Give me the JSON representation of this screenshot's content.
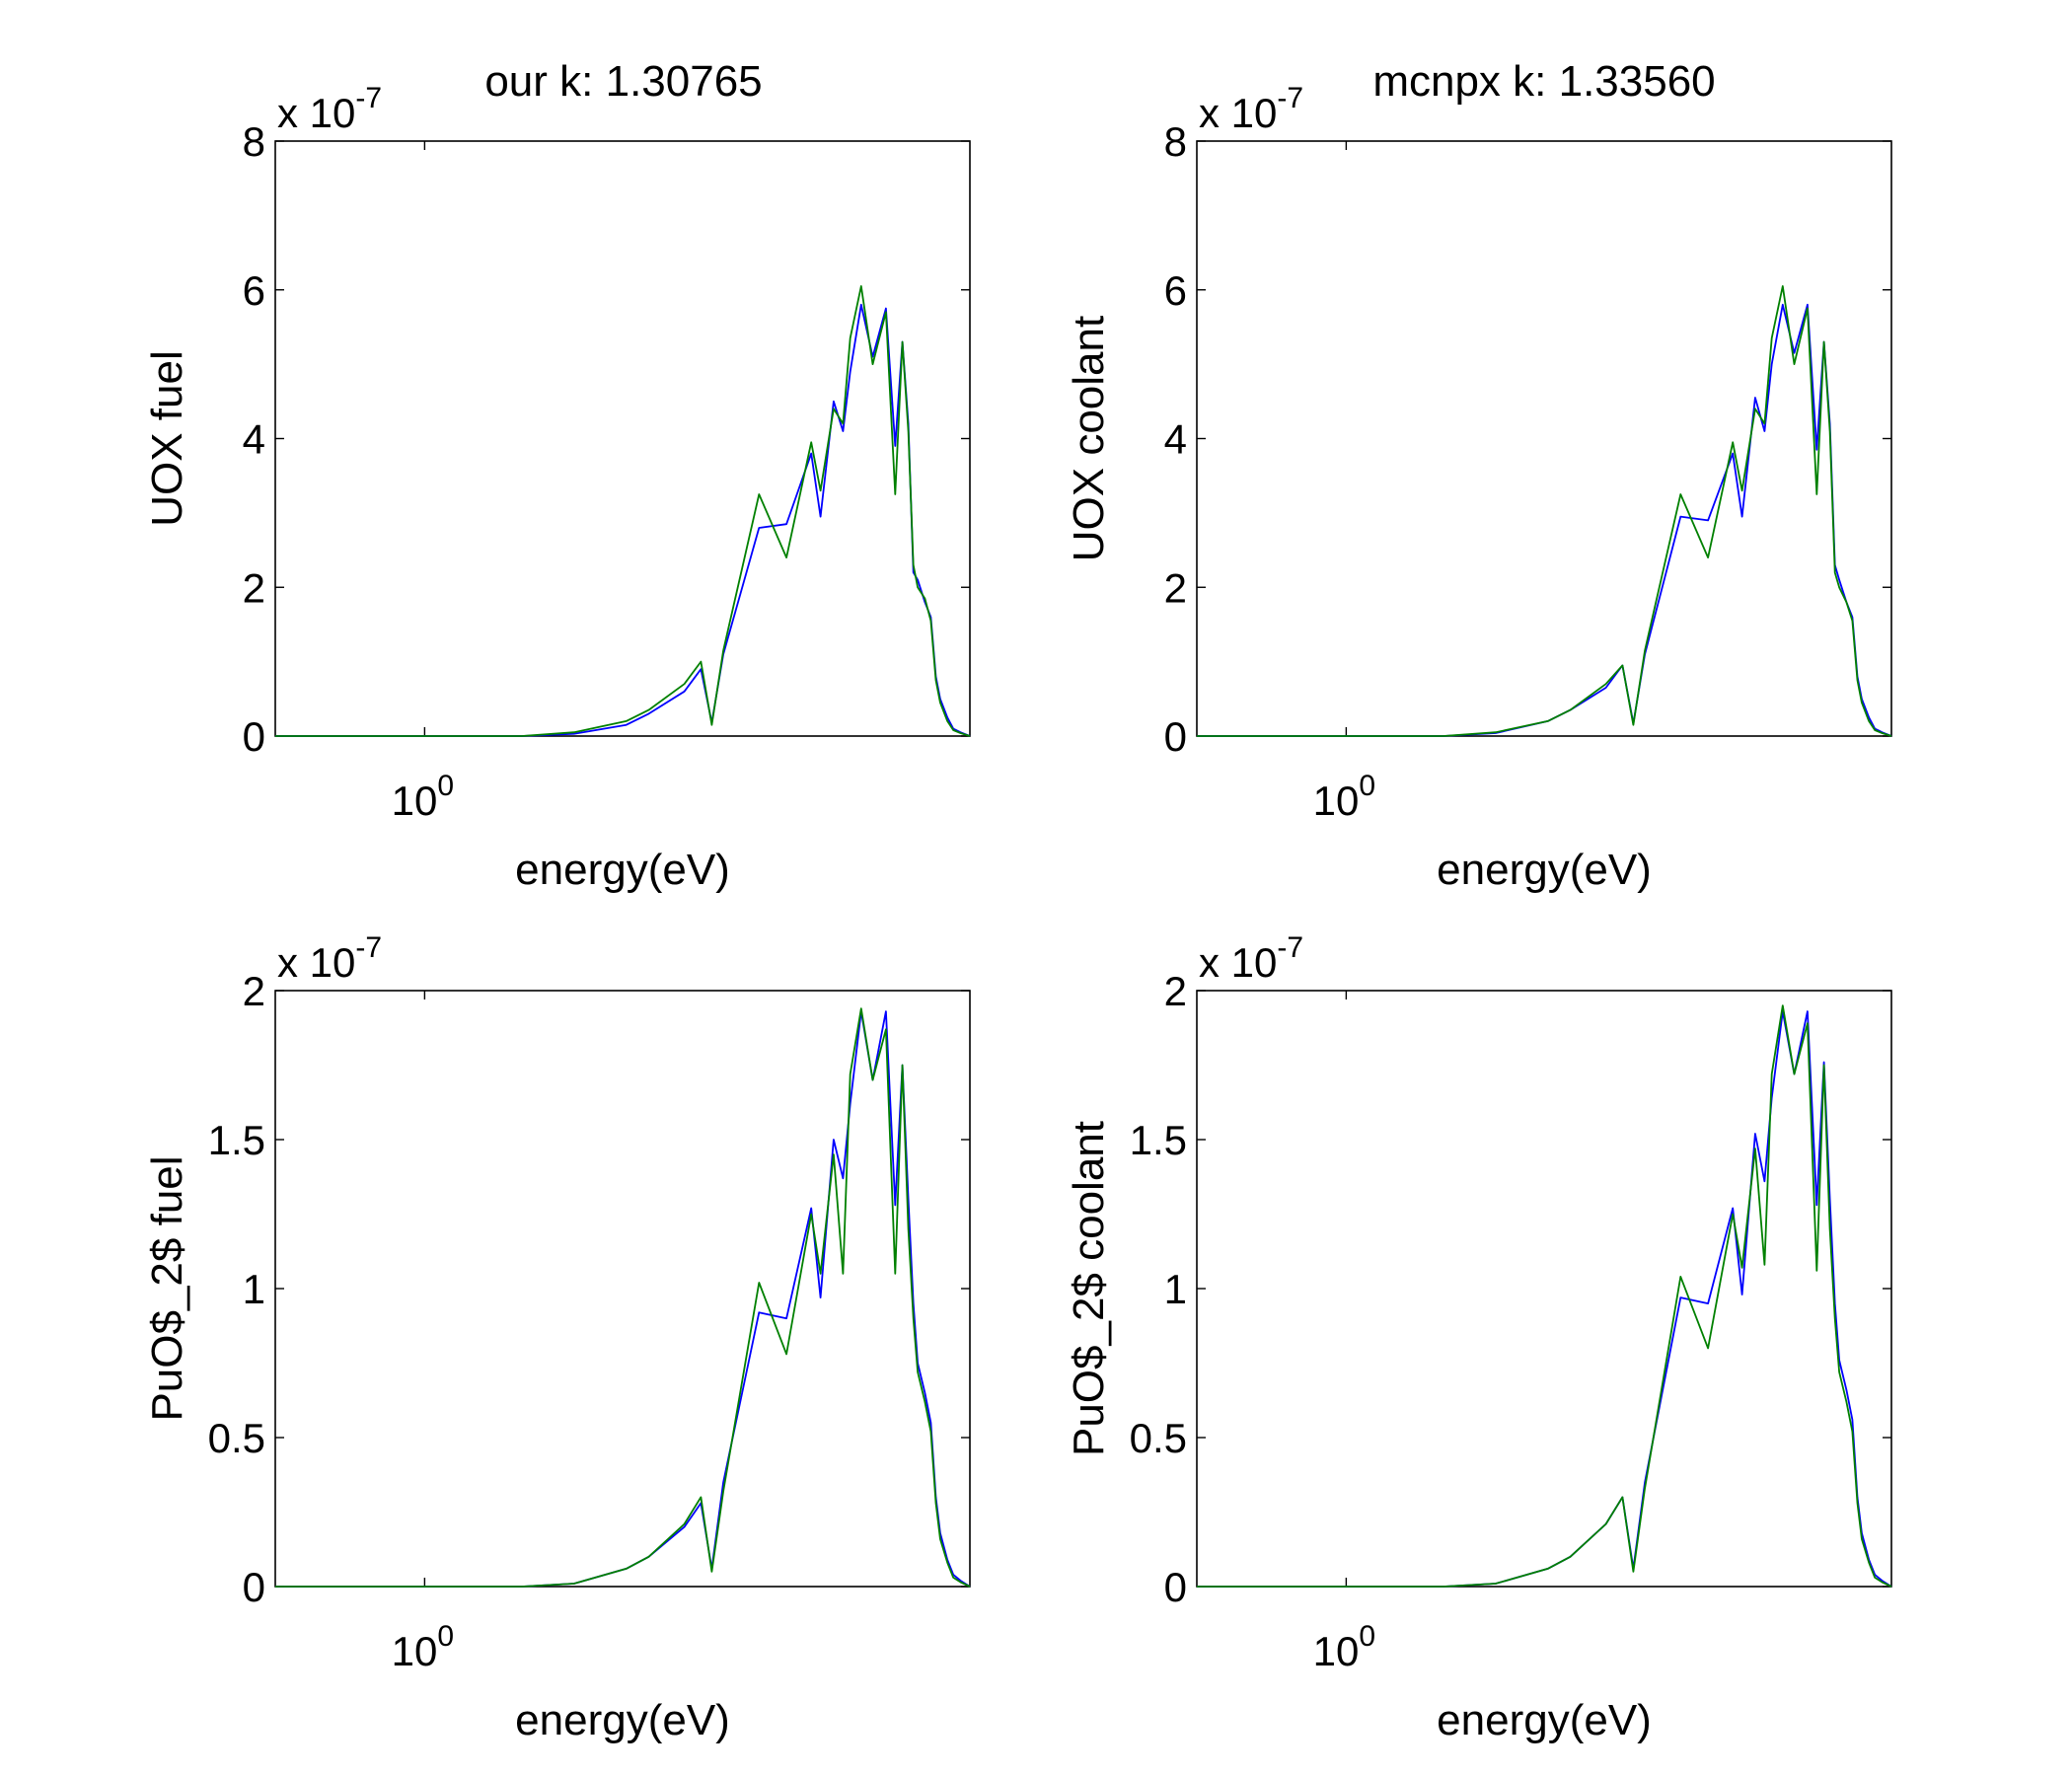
{
  "figure": {
    "top_left_title": "our k: 1.30765",
    "top_right_title": "mcnpx k: 1.33560"
  },
  "series_colors": {
    "our": "#0000ff",
    "mcnpx": "#008000"
  },
  "chart_data": [
    {
      "type": "line",
      "panel": "top-left",
      "ylabel": "UOX fuel",
      "xlabel": "energy(eV)",
      "xscale": "log",
      "xlim": [
        0.01,
        20000000
      ],
      "xticks": [
        {
          "value": 1,
          "base": "10",
          "exp": "0"
        }
      ],
      "ylim": [
        0,
        8
      ],
      "yticks": [
        "0",
        "2",
        "4",
        "6",
        "8"
      ],
      "yscale_factor": {
        "prefix": "x 10",
        "exp": "-7"
      },
      "series": [
        {
          "color": "#0000ff",
          "x": [
            0.01,
            1,
            20,
            100,
            500,
            1000,
            3000,
            5000,
            7000,
            10000,
            30000,
            70000,
            150000,
            200000,
            300000,
            400000,
            500000,
            700000,
            1000000,
            1500000,
            2000000,
            2500000,
            3000000,
            3500000,
            4000000,
            5000000,
            6000000,
            7000000,
            8000000,
            10000000,
            12000000,
            15000000,
            20000000
          ],
          "y": [
            0,
            0,
            0,
            0.03,
            0.15,
            0.3,
            0.6,
            0.9,
            0.18,
            1.1,
            2.8,
            2.85,
            3.8,
            2.95,
            4.5,
            4.1,
            4.9,
            5.8,
            5.1,
            5.75,
            3.9,
            5.3,
            4.2,
            2.2,
            2.1,
            1.8,
            1.6,
            0.8,
            0.5,
            0.25,
            0.1,
            0.05,
            0
          ]
        },
        {
          "color": "#008000",
          "x": [
            0.01,
            1,
            20,
            100,
            500,
            1000,
            3000,
            5000,
            7000,
            10000,
            30000,
            70000,
            150000,
            200000,
            300000,
            400000,
            500000,
            700000,
            1000000,
            1500000,
            2000000,
            2500000,
            3000000,
            3500000,
            4000000,
            5000000,
            6000000,
            7000000,
            8000000,
            10000000,
            12000000,
            15000000,
            20000000
          ],
          "y": [
            0,
            0,
            0,
            0.05,
            0.2,
            0.35,
            0.7,
            1.0,
            0.15,
            1.15,
            3.25,
            2.4,
            3.95,
            3.3,
            4.4,
            4.2,
            5.35,
            6.05,
            5.0,
            5.7,
            3.25,
            5.3,
            4.1,
            2.3,
            2.0,
            1.85,
            1.55,
            0.75,
            0.45,
            0.2,
            0.08,
            0.04,
            0
          ]
        }
      ]
    },
    {
      "type": "line",
      "panel": "top-right",
      "ylabel": "UOX coolant",
      "xlabel": "energy(eV)",
      "xscale": "log",
      "xlim": [
        0.01,
        20000000
      ],
      "xticks": [
        {
          "value": 1,
          "base": "10",
          "exp": "0"
        }
      ],
      "ylim": [
        0,
        8
      ],
      "yticks": [
        "0",
        "2",
        "4",
        "6",
        "8"
      ],
      "yscale_factor": {
        "prefix": "x 10",
        "exp": "-7"
      },
      "series": [
        {
          "color": "#0000ff",
          "x": [
            0.01,
            1,
            20,
            100,
            500,
            1000,
            3000,
            5000,
            7000,
            10000,
            30000,
            70000,
            150000,
            200000,
            300000,
            400000,
            500000,
            700000,
            1000000,
            1500000,
            2000000,
            2500000,
            3000000,
            3500000,
            4000000,
            5000000,
            6000000,
            7000000,
            8000000,
            10000000,
            12000000,
            15000000,
            20000000
          ],
          "y": [
            0,
            0,
            0,
            0.04,
            0.2,
            0.35,
            0.65,
            0.95,
            0.17,
            1.1,
            2.95,
            2.9,
            3.8,
            2.95,
            4.55,
            4.1,
            5.0,
            5.8,
            5.15,
            5.8,
            3.85,
            5.3,
            4.2,
            2.3,
            2.1,
            1.8,
            1.6,
            0.8,
            0.5,
            0.25,
            0.1,
            0.05,
            0
          ]
        },
        {
          "color": "#008000",
          "x": [
            0.01,
            1,
            20,
            100,
            500,
            1000,
            3000,
            5000,
            7000,
            10000,
            30000,
            70000,
            150000,
            200000,
            300000,
            400000,
            500000,
            700000,
            1000000,
            1500000,
            2000000,
            2500000,
            3000000,
            3500000,
            4000000,
            5000000,
            6000000,
            7000000,
            8000000,
            10000000,
            12000000,
            15000000,
            20000000
          ],
          "y": [
            0,
            0,
            0,
            0.05,
            0.2,
            0.35,
            0.7,
            0.95,
            0.15,
            1.15,
            3.25,
            2.4,
            3.95,
            3.3,
            4.4,
            4.2,
            5.35,
            6.05,
            5.0,
            5.75,
            3.25,
            5.3,
            4.1,
            2.2,
            2.0,
            1.8,
            1.55,
            0.75,
            0.45,
            0.2,
            0.08,
            0.04,
            0
          ]
        }
      ]
    },
    {
      "type": "line",
      "panel": "bottom-left",
      "ylabel": "PuO$_2$ fuel",
      "xlabel": "energy(eV)",
      "xscale": "log",
      "xlim": [
        0.01,
        20000000
      ],
      "xticks": [
        {
          "value": 1,
          "base": "10",
          "exp": "0"
        }
      ],
      "ylim": [
        0,
        2
      ],
      "yticks": [
        "0",
        "0.5",
        "1",
        "1.5",
        "2"
      ],
      "yscale_factor": {
        "prefix": "x 10",
        "exp": "-7"
      },
      "series": [
        {
          "color": "#0000ff",
          "x": [
            0.01,
            1,
            20,
            100,
            500,
            1000,
            3000,
            5000,
            7000,
            10000,
            30000,
            70000,
            150000,
            200000,
            300000,
            400000,
            500000,
            700000,
            1000000,
            1500000,
            2000000,
            2500000,
            3000000,
            3500000,
            4000000,
            5000000,
            6000000,
            7000000,
            8000000,
            10000000,
            12000000,
            15000000,
            20000000
          ],
          "y": [
            0,
            0,
            0,
            0.01,
            0.06,
            0.1,
            0.2,
            0.28,
            0.06,
            0.35,
            0.92,
            0.9,
            1.27,
            0.97,
            1.5,
            1.37,
            1.62,
            1.93,
            1.7,
            1.93,
            1.28,
            1.75,
            1.3,
            0.95,
            0.75,
            0.65,
            0.55,
            0.3,
            0.18,
            0.09,
            0.04,
            0.02,
            0
          ]
        },
        {
          "color": "#008000",
          "x": [
            0.01,
            1,
            20,
            100,
            500,
            1000,
            3000,
            5000,
            7000,
            10000,
            30000,
            70000,
            150000,
            200000,
            300000,
            400000,
            500000,
            700000,
            1000000,
            1500000,
            2000000,
            2500000,
            3000000,
            3500000,
            4000000,
            5000000,
            6000000,
            7000000,
            8000000,
            10000000,
            12000000,
            15000000,
            20000000
          ],
          "y": [
            0,
            0,
            0,
            0.01,
            0.06,
            0.1,
            0.21,
            0.3,
            0.05,
            0.32,
            1.02,
            0.78,
            1.25,
            1.05,
            1.45,
            1.05,
            1.72,
            1.94,
            1.7,
            1.87,
            1.05,
            1.75,
            1.2,
            0.9,
            0.72,
            0.62,
            0.52,
            0.28,
            0.16,
            0.08,
            0.03,
            0.015,
            0
          ]
        }
      ]
    },
    {
      "type": "line",
      "panel": "bottom-right",
      "ylabel": "PuO$_2$ coolant",
      "xlabel": "energy(eV)",
      "xscale": "log",
      "xlim": [
        0.01,
        20000000
      ],
      "xticks": [
        {
          "value": 1,
          "base": "10",
          "exp": "0"
        }
      ],
      "ylim": [
        0,
        2
      ],
      "yticks": [
        "0",
        "0.5",
        "1",
        "1.5",
        "2"
      ],
      "yscale_factor": {
        "prefix": "x 10",
        "exp": "-7"
      },
      "series": [
        {
          "color": "#0000ff",
          "x": [
            0.01,
            1,
            20,
            100,
            500,
            1000,
            3000,
            5000,
            7000,
            10000,
            30000,
            70000,
            150000,
            200000,
            300000,
            400000,
            500000,
            700000,
            1000000,
            1500000,
            2000000,
            2500000,
            3000000,
            3500000,
            4000000,
            5000000,
            6000000,
            7000000,
            8000000,
            10000000,
            12000000,
            15000000,
            20000000
          ],
          "y": [
            0,
            0,
            0,
            0.01,
            0.06,
            0.1,
            0.21,
            0.3,
            0.06,
            0.35,
            0.97,
            0.95,
            1.27,
            0.98,
            1.52,
            1.36,
            1.64,
            1.93,
            1.72,
            1.93,
            1.28,
            1.76,
            1.3,
            0.95,
            0.76,
            0.66,
            0.56,
            0.3,
            0.18,
            0.09,
            0.04,
            0.02,
            0
          ]
        },
        {
          "color": "#008000",
          "x": [
            0.01,
            1,
            20,
            100,
            500,
            1000,
            3000,
            5000,
            7000,
            10000,
            30000,
            70000,
            150000,
            200000,
            300000,
            400000,
            500000,
            700000,
            1000000,
            1500000,
            2000000,
            2500000,
            3000000,
            3500000,
            4000000,
            5000000,
            6000000,
            7000000,
            8000000,
            10000000,
            12000000,
            15000000,
            20000000
          ],
          "y": [
            0,
            0,
            0,
            0.01,
            0.06,
            0.1,
            0.21,
            0.3,
            0.05,
            0.33,
            1.04,
            0.8,
            1.25,
            1.07,
            1.47,
            1.08,
            1.72,
            1.95,
            1.72,
            1.89,
            1.06,
            1.75,
            1.2,
            0.9,
            0.72,
            0.62,
            0.52,
            0.28,
            0.16,
            0.08,
            0.03,
            0.015,
            0
          ]
        }
      ]
    }
  ]
}
